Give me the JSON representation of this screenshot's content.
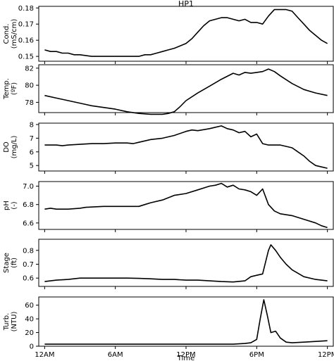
{
  "chart_data": {
    "type": "line",
    "title": "HP1",
    "xlabel": "Time",
    "x_tick_labels": [
      "12AM",
      "6AM",
      "12PM",
      "6PM",
      "12PM"
    ],
    "x_tick_hours": [
      0,
      6,
      12,
      18,
      24
    ],
    "xlim": [
      -0.5,
      24.5
    ],
    "panels": [
      {
        "ylabel_lines": [
          "Cond.",
          "(mS/cm)"
        ],
        "ylim": [
          0.147,
          0.181
        ],
        "yticks": [
          0.15,
          0.16,
          0.17,
          0.18
        ],
        "ytick_labels": [
          "0.15",
          "0.16",
          "0.17",
          "0.18"
        ],
        "series": [
          {
            "x": [
              0,
              0.5,
              1,
              1.5,
              2,
              2.5,
              3,
              4,
              5,
              6,
              7,
              8,
              8.5,
              9,
              9.5,
              10,
              10.5,
              11,
              12,
              12.5,
              13,
              13.5,
              14,
              14.5,
              15,
              15.5,
              16,
              16.5,
              17,
              17.5,
              18,
              18.5,
              19,
              19.5,
              20,
              20.5,
              21,
              21.5,
              22,
              22.5,
              23,
              23.5,
              24
            ],
            "y": [
              0.154,
              0.153,
              0.153,
              0.152,
              0.152,
              0.151,
              0.151,
              0.15,
              0.15,
              0.15,
              0.15,
              0.15,
              0.151,
              0.151,
              0.152,
              0.153,
              0.154,
              0.155,
              0.158,
              0.161,
              0.165,
              0.169,
              0.172,
              0.173,
              0.174,
              0.174,
              0.173,
              0.172,
              0.173,
              0.171,
              0.171,
              0.17,
              0.175,
              0.179,
              0.179,
              0.179,
              0.178,
              0.174,
              0.17,
              0.166,
              0.163,
              0.16,
              0.158
            ]
          }
        ]
      },
      {
        "ylabel_lines": [
          "Temp.",
          "(ºF)"
        ],
        "ylim": [
          76.8,
          82.4
        ],
        "yticks": [
          78,
          80,
          82
        ],
        "ytick_labels": [
          "78",
          "80",
          "82"
        ],
        "series": [
          {
            "x": [
              0,
              1,
              2,
              3,
              4,
              5,
              6,
              7,
              8,
              9,
              10,
              10.5,
              11,
              11.5,
              12,
              13,
              14,
              15,
              16,
              16.5,
              17,
              17.5,
              18,
              18.5,
              19,
              19.5,
              20,
              21,
              22,
              23,
              24
            ],
            "y": [
              78.8,
              78.5,
              78.2,
              77.9,
              77.6,
              77.4,
              77.2,
              76.9,
              76.7,
              76.6,
              76.6,
              76.7,
              76.9,
              77.5,
              78.2,
              79.1,
              79.9,
              80.7,
              81.4,
              81.2,
              81.5,
              81.4,
              81.5,
              81.6,
              81.9,
              81.6,
              81.1,
              80.2,
              79.5,
              79.1,
              78.8
            ]
          }
        ]
      },
      {
        "ylabel_lines": [
          "DO",
          "(mg/L)"
        ],
        "ylim": [
          4.6,
          8.1
        ],
        "yticks": [
          5,
          6,
          7,
          8
        ],
        "ytick_labels": [
          "5",
          "6",
          "7",
          "8"
        ],
        "series": [
          {
            "x": [
              0,
              1,
              1.5,
              2,
              3,
              4,
              5,
              6,
              7,
              7.5,
              8,
              9,
              10,
              11,
              12,
              12.5,
              13,
              14,
              14.5,
              15,
              15.5,
              16,
              16.5,
              17,
              17.5,
              18,
              18.5,
              19,
              20,
              21,
              21.5,
              22,
              22.5,
              23,
              23.5,
              24
            ],
            "y": [
              6.5,
              6.5,
              6.45,
              6.5,
              6.55,
              6.6,
              6.6,
              6.65,
              6.65,
              6.6,
              6.7,
              6.9,
              7.0,
              7.2,
              7.5,
              7.6,
              7.55,
              7.7,
              7.8,
              7.9,
              7.7,
              7.6,
              7.4,
              7.5,
              7.1,
              7.3,
              6.6,
              6.5,
              6.5,
              6.3,
              6.0,
              5.7,
              5.3,
              5.0,
              4.9,
              4.8
            ]
          }
        ]
      },
      {
        "ylabel_lines": [
          "pH",
          "(-)"
        ],
        "ylim": [
          6.53,
          7.05
        ],
        "yticks": [
          6.6,
          6.8,
          7.0
        ],
        "ytick_labels": [
          "6.6",
          "6.8",
          "7.0"
        ],
        "series": [
          {
            "x": [
              0,
              0.5,
              1,
              2,
              3,
              3.5,
              5,
              6,
              7,
              8,
              8.5,
              9,
              10,
              11,
              12,
              13,
              14,
              14.5,
              15,
              15.5,
              16,
              16.5,
              17,
              17.5,
              18,
              18.5,
              19,
              19.5,
              20,
              21,
              22,
              23,
              23.5,
              24
            ],
            "y": [
              6.75,
              6.76,
              6.75,
              6.75,
              6.76,
              6.77,
              6.78,
              6.78,
              6.78,
              6.78,
              6.8,
              6.82,
              6.85,
              6.9,
              6.92,
              6.96,
              7.0,
              7.01,
              7.03,
              6.99,
              7.01,
              6.97,
              6.96,
              6.94,
              6.9,
              6.97,
              6.8,
              6.73,
              6.7,
              6.68,
              6.64,
              6.6,
              6.57,
              6.55
            ]
          }
        ]
      },
      {
        "ylabel_lines": [
          "Stage",
          "(ft)"
        ],
        "ylim": [
          0.54,
          0.88
        ],
        "yticks": [
          0.6,
          0.7,
          0.8
        ],
        "ytick_labels": [
          "0.6",
          "0.7",
          "0.8"
        ],
        "series": [
          {
            "x": [
              0,
              1,
              2,
              3,
              4,
              5,
              6,
              7,
              8,
              9,
              10,
              11,
              12,
              13,
              14,
              15,
              16,
              17,
              17.5,
              18,
              18.5,
              19,
              19.2,
              19.6,
              20,
              20.5,
              21,
              22,
              23,
              24
            ],
            "y": [
              0.575,
              0.585,
              0.59,
              0.6,
              0.6,
              0.6,
              0.6,
              0.6,
              0.598,
              0.595,
              0.59,
              0.59,
              0.585,
              0.585,
              0.58,
              0.575,
              0.572,
              0.58,
              0.61,
              0.62,
              0.63,
              0.8,
              0.84,
              0.8,
              0.75,
              0.7,
              0.66,
              0.61,
              0.59,
              0.58
            ]
          }
        ]
      },
      {
        "ylabel_lines": [
          "Turb.",
          "(NTU)"
        ],
        "ylim": [
          0,
          72
        ],
        "yticks": [
          0,
          20,
          40,
          60
        ],
        "ytick_labels": [
          "0",
          "20",
          "40",
          "60"
        ],
        "series": [
          {
            "x": [
              0,
              1,
              2,
              3,
              4,
              5,
              6,
              7,
              8,
              9,
              10,
              11,
              12,
              13,
              14,
              15,
              16,
              17,
              17.5,
              18,
              18.3,
              18.6,
              18.9,
              19.2,
              19.6,
              20,
              20.5,
              21,
              22,
              23,
              24
            ],
            "y": [
              3,
              3,
              3,
              3,
              3,
              3,
              3,
              3,
              3,
              3,
              3,
              3,
              3,
              3,
              3,
              3,
              3,
              4,
              5,
              10,
              40,
              68,
              45,
              20,
              22,
              12,
              6,
              5,
              6,
              7,
              8
            ]
          }
        ]
      }
    ]
  }
}
